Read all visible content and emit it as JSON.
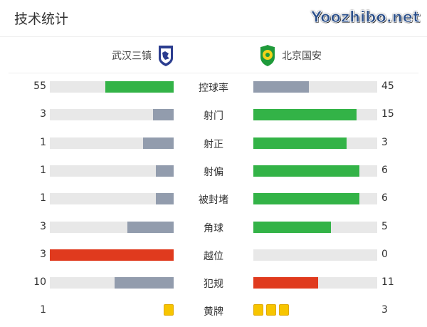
{
  "title": "技术统计",
  "home": {
    "name": "武汉三镇",
    "logo_color": "#2b3d8f"
  },
  "away": {
    "name": "北京国安",
    "logo_color": "#1f9a3a"
  },
  "colors": {
    "win": "#33b347",
    "lose": "#929cad",
    "foul": "#e03a1e",
    "track": "#e8e8e8",
    "card": "#f7c500"
  },
  "stats": [
    {
      "label": "控球率",
      "home": 55,
      "away": 45
    },
    {
      "label": "射门",
      "home": 3,
      "away": 15
    },
    {
      "label": "射正",
      "home": 1,
      "away": 3
    },
    {
      "label": "射偏",
      "home": 1,
      "away": 6
    },
    {
      "label": "被封堵",
      "home": 1,
      "away": 6
    },
    {
      "label": "角球",
      "home": 3,
      "away": 5
    },
    {
      "label": "越位",
      "home": 3,
      "away": 0,
      "bad": true
    },
    {
      "label": "犯规",
      "home": 10,
      "away": 11,
      "bad": true
    },
    {
      "label": "黄牌",
      "home": 1,
      "away": 3,
      "cards": true
    }
  ],
  "watermark": "Yoozhibo.net"
}
